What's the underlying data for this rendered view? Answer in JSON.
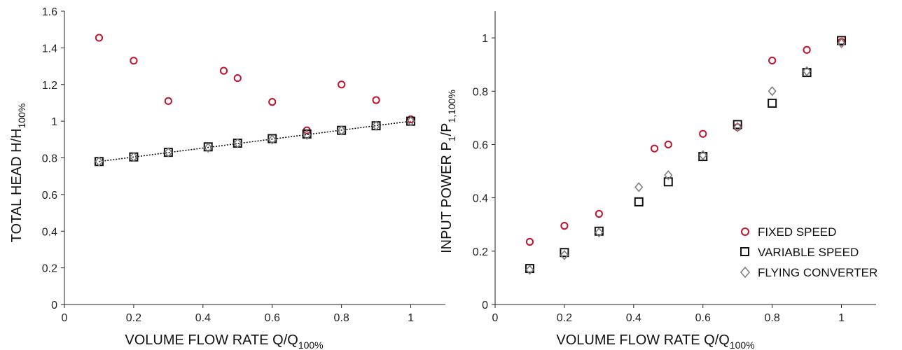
{
  "chart_data": [
    {
      "type": "scatter",
      "ylabel": {
        "main": "TOTAL HEAD H/H",
        "sub": "100%"
      },
      "xlabel": {
        "main": "VOLUME FLOW RATE Q/Q",
        "sub": "100%"
      },
      "xlim": [
        0,
        1.1
      ],
      "ylim": [
        0,
        1.6
      ],
      "xticks": [
        "0",
        "0.2",
        "0.4",
        "0.6",
        "0.8",
        "1"
      ],
      "yticks": [
        "0",
        "0.2",
        "0.4",
        "0.6",
        "0.8",
        "1",
        "1.2",
        "1.4",
        "1.6"
      ],
      "trendline": {
        "style": "dotted",
        "x": [
          0.1,
          1.0
        ],
        "y": [
          0.78,
          1.0
        ]
      },
      "series": [
        {
          "key": "fixed",
          "marker": "circle",
          "color": "#c0152f",
          "x": [
            0.1,
            0.2,
            0.3,
            0.46,
            0.5,
            0.6,
            0.7,
            0.8,
            0.9,
            1.0
          ],
          "y": [
            1.455,
            1.33,
            1.11,
            1.275,
            1.235,
            1.105,
            0.95,
            1.2,
            1.115,
            1.01
          ]
        },
        {
          "key": "variable",
          "marker": "square",
          "color": "#111111",
          "x": [
            0.1,
            0.2,
            0.3,
            0.415,
            0.5,
            0.6,
            0.7,
            0.8,
            0.9,
            1.0
          ],
          "y": [
            0.78,
            0.805,
            0.83,
            0.86,
            0.88,
            0.905,
            0.93,
            0.95,
            0.975,
            1.0
          ]
        },
        {
          "key": "flying",
          "marker": "diamond",
          "color": "#7f7f7f",
          "x": [
            0.1,
            0.2,
            0.3,
            0.415,
            0.5,
            0.6,
            0.7,
            0.8,
            0.9,
            1.0
          ],
          "y": [
            0.78,
            0.805,
            0.83,
            0.855,
            0.88,
            0.9,
            0.925,
            0.95,
            0.975,
            1.0
          ]
        }
      ]
    },
    {
      "type": "scatter",
      "ylabel": {
        "main": "INPUT POWER P",
        "sub1": "1",
        "mid": "/P",
        "sub2": "1,100%"
      },
      "xlabel": {
        "main": "VOLUME FLOW RATE Q/Q",
        "sub": "100%"
      },
      "xlim": [
        0,
        1.1
      ],
      "ylim": [
        0,
        1.1
      ],
      "xticks": [
        "0",
        "0.2",
        "0.4",
        "0.6",
        "0.8",
        "1"
      ],
      "yticks": [
        "0",
        "0.2",
        "0.4",
        "0.6",
        "0.8",
        "1"
      ],
      "legend_position": "bottom-right",
      "series": [
        {
          "key": "fixed",
          "name": "FIXED SPEED",
          "marker": "circle",
          "color": "#c0152f",
          "x": [
            0.1,
            0.2,
            0.3,
            0.46,
            0.5,
            0.6,
            0.7,
            0.8,
            0.9,
            1.0
          ],
          "y": [
            0.235,
            0.295,
            0.34,
            0.585,
            0.6,
            0.64,
            0.665,
            0.915,
            0.955,
            0.985
          ]
        },
        {
          "key": "variable",
          "name": "VARIABLE SPEED",
          "marker": "square",
          "color": "#111111",
          "x": [
            0.1,
            0.2,
            0.3,
            0.415,
            0.5,
            0.6,
            0.7,
            0.8,
            0.9,
            1.0
          ],
          "y": [
            0.135,
            0.195,
            0.275,
            0.385,
            0.46,
            0.555,
            0.675,
            0.755,
            0.87,
            0.99
          ]
        },
        {
          "key": "flying",
          "name": "FLYING CONVERTER",
          "marker": "diamond",
          "color": "#7f7f7f",
          "x": [
            0.1,
            0.2,
            0.3,
            0.415,
            0.5,
            0.6,
            0.7,
            0.8,
            0.9,
            1.0
          ],
          "y": [
            0.13,
            0.185,
            0.27,
            0.44,
            0.485,
            0.56,
            0.665,
            0.8,
            0.875,
            0.98
          ]
        }
      ]
    }
  ]
}
